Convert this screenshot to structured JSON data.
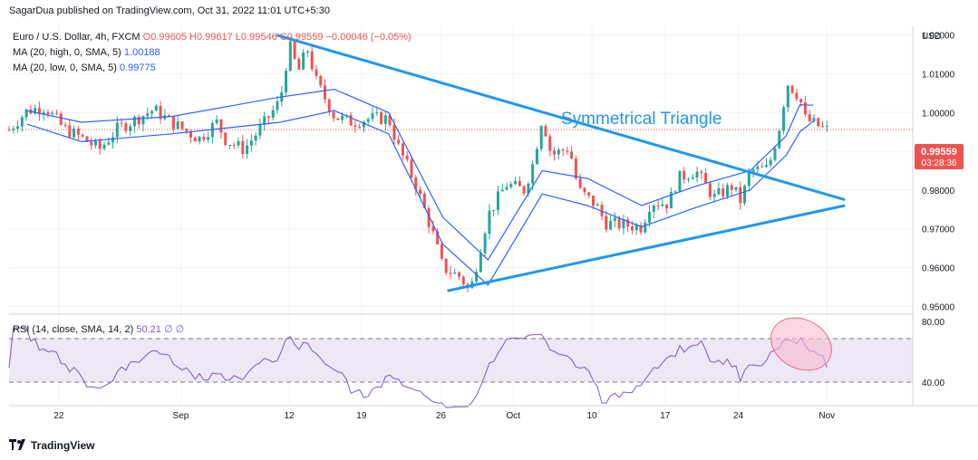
{
  "header": {
    "publisher_line": "SagarDua published on TradingView.com, Oct 31, 2022 11:01 UTC+5:30"
  },
  "legend": {
    "symbol": "Euro / U.S. Dollar, 4h, FXCM",
    "ohlc": "O0.99605 H0.99617 L0.99546 C0.99559 −0.00046 (−0.05%)",
    "ma_high_label": "MA (20, high, 0, SMA, 5)",
    "ma_high_value": "1.00188",
    "ma_low_label": "MA (20, low, 0, SMA, 5)",
    "ma_low_value": "0.99775",
    "rsi_label": "RSI (14, close, SMA, 14, 2)",
    "rsi_value": "50.21",
    "rsi_extra": "∅ ∅"
  },
  "price_axis": {
    "currency": "USD",
    "last_price": "0.99559",
    "countdown": "03:28:36"
  },
  "annotation": {
    "triangle_label": "Symmetrical Triangle"
  },
  "footer": {
    "brand": "TradingView"
  },
  "colors": {
    "up": "#26a69a",
    "down": "#ef5350",
    "ma": "#2962ff",
    "trendline": "#2196f3",
    "rsi": "#7e57c2",
    "rsi_band": "#ede7f6",
    "highlight": "#f8bbd0"
  },
  "chart_data": {
    "type": "candlestick",
    "title": "Euro / U.S. Dollar, 4h, FXCM",
    "y_axis": {
      "ticks": [
        1.02,
        1.01,
        1.0,
        0.99,
        0.98,
        0.97,
        0.96,
        0.95
      ],
      "tick_labels": [
        "1.02000",
        "1.01000",
        "1.00000",
        "0.99000",
        "0.98000",
        "0.97000",
        "0.96000",
        "0.95000"
      ],
      "range": [
        0.9482,
        1.0225
      ]
    },
    "x_axis": {
      "labels": [
        "22",
        "Sep",
        "12",
        "19",
        "26",
        "Oct",
        "10",
        "17",
        "24",
        "Nov"
      ]
    },
    "close_path": [
      [
        0,
        0.9955
      ],
      [
        0.02,
        1.0005
      ],
      [
        0.04,
        1.0015
      ],
      [
        0.06,
        0.996
      ],
      [
        0.08,
        0.9935
      ],
      [
        0.1,
        0.9905
      ],
      [
        0.12,
        0.9958
      ],
      [
        0.14,
        0.9982
      ],
      [
        0.16,
        1.0008
      ],
      [
        0.18,
        0.9975
      ],
      [
        0.21,
        0.9932
      ],
      [
        0.23,
        0.9975
      ],
      [
        0.24,
        0.9928
      ],
      [
        0.26,
        0.9905
      ],
      [
        0.28,
        0.9965
      ],
      [
        0.3,
        1.003
      ],
      [
        0.31,
        1.0175
      ],
      [
        0.32,
        1.0105
      ],
      [
        0.33,
        1.0165
      ],
      [
        0.34,
        1.008
      ],
      [
        0.36,
        0.999
      ],
      [
        0.38,
        0.9975
      ],
      [
        0.4,
        0.9985
      ],
      [
        0.42,
        0.9985
      ],
      [
        0.43,
        0.9915
      ],
      [
        0.45,
        0.9815
      ],
      [
        0.47,
        0.968
      ],
      [
        0.48,
        0.96
      ],
      [
        0.5,
        0.9575
      ],
      [
        0.51,
        0.9535
      ],
      [
        0.53,
        0.9735
      ],
      [
        0.55,
        0.9815
      ],
      [
        0.57,
        0.98
      ],
      [
        0.58,
        0.987
      ],
      [
        0.59,
        0.999
      ],
      [
        0.6,
        0.989
      ],
      [
        0.62,
        0.991
      ],
      [
        0.63,
        0.98
      ],
      [
        0.65,
        0.976
      ],
      [
        0.66,
        0.9715
      ],
      [
        0.68,
        0.971
      ],
      [
        0.7,
        0.9705
      ],
      [
        0.71,
        0.977
      ],
      [
        0.73,
        0.9765
      ],
      [
        0.74,
        0.983
      ],
      [
        0.76,
        0.985
      ],
      [
        0.78,
        0.978
      ],
      [
        0.8,
        0.981
      ],
      [
        0.81,
        0.977
      ],
      [
        0.82,
        0.985
      ],
      [
        0.84,
        0.9855
      ],
      [
        0.855,
        0.9985
      ],
      [
        0.86,
        1.008
      ],
      [
        0.875,
        1.004
      ],
      [
        0.88,
        0.9985
      ],
      [
        0.9,
        0.996
      ],
      [
        0.905,
        0.9956
      ]
    ],
    "ma_high": [
      [
        0.02,
        1.0005
      ],
      [
        0.08,
        0.9975
      ],
      [
        0.18,
        0.999
      ],
      [
        0.3,
        1.004
      ],
      [
        0.36,
        1.006
      ],
      [
        0.42,
        1.0
      ],
      [
        0.48,
        0.973
      ],
      [
        0.53,
        0.962
      ],
      [
        0.59,
        0.985
      ],
      [
        0.64,
        0.983
      ],
      [
        0.7,
        0.976
      ],
      [
        0.76,
        0.981
      ],
      [
        0.82,
        0.985
      ],
      [
        0.86,
        0.994
      ],
      [
        0.875,
        1.002
      ],
      [
        0.89,
        1.0019
      ]
    ],
    "ma_low": [
      [
        0.02,
        0.997
      ],
      [
        0.08,
        0.9925
      ],
      [
        0.18,
        0.9945
      ],
      [
        0.3,
        0.9975
      ],
      [
        0.36,
        1.0005
      ],
      [
        0.42,
        0.9945
      ],
      [
        0.48,
        0.966
      ],
      [
        0.53,
        0.9555
      ],
      [
        0.59,
        0.979
      ],
      [
        0.64,
        0.976
      ],
      [
        0.7,
        0.9705
      ],
      [
        0.76,
        0.9755
      ],
      [
        0.82,
        0.98
      ],
      [
        0.86,
        0.989
      ],
      [
        0.875,
        0.995
      ],
      [
        0.89,
        0.9978
      ]
    ],
    "trendlines": [
      {
        "from": [
          0.296,
          1.02
        ],
        "to": [
          0.925,
          0.9775
        ]
      },
      {
        "from": [
          0.485,
          0.954
        ],
        "to": [
          0.925,
          0.976
        ]
      }
    ],
    "rsi": {
      "levels": [
        70,
        40
      ],
      "tick_labels": [
        "80.00",
        "40.00"
      ],
      "range": [
        25,
        85
      ],
      "last": 50.21
    }
  }
}
